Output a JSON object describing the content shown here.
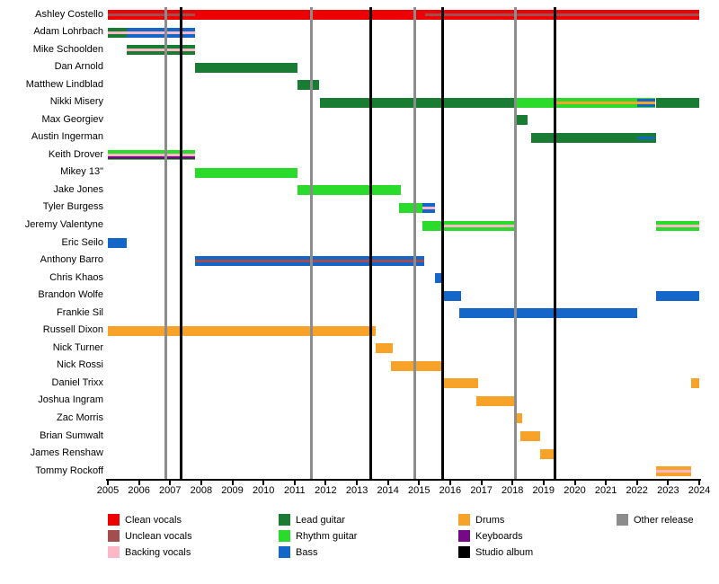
{
  "colors": {
    "clean_vocals": "#EF0000",
    "unclean_vocals": "#A34E4E",
    "backing_vocals": "#FCB8C6",
    "lead_guitar": "#187C33",
    "rhythm_guitar": "#2BDB2B",
    "bass": "#1467C8",
    "drums": "#F7A229",
    "keyboards": "#750A86",
    "studio_album": "#000000",
    "other_release": "#8C8C8C"
  },
  "chart_data": {
    "type": "timeline-gantt",
    "title": "",
    "x_axis": {
      "min": 2005,
      "max": 2024,
      "ticks": [
        2005,
        2006,
        2007,
        2008,
        2009,
        2010,
        2011,
        2012,
        2013,
        2014,
        2015,
        2016,
        2017,
        2018,
        2019,
        2020,
        2021,
        2022,
        2023,
        2024
      ]
    },
    "members": [
      {
        "name": "Ashley Costello",
        "bars": [
          {
            "from": 2005,
            "to": 2024,
            "role": "clean_vocals",
            "stripes": [
              {
                "from": 2005,
                "to": 2007.8,
                "role": "unclean_vocals",
                "pos": "center"
              },
              {
                "from": 2015.2,
                "to": 2024,
                "role": "unclean_vocals",
                "pos": "center"
              }
            ]
          }
        ]
      },
      {
        "name": "Adam Lohrbach",
        "bars": [
          {
            "from": 2005,
            "to": 2005.6,
            "role": "lead_guitar",
            "stripes": [
              {
                "from": 2005,
                "to": 2005.6,
                "role": "backing_vocals",
                "pos": "center"
              }
            ]
          },
          {
            "from": 2005.6,
            "to": 2007.8,
            "role": "bass",
            "stripes": [
              {
                "from": 2005.6,
                "to": 2007.8,
                "role": "backing_vocals",
                "pos": "center"
              }
            ]
          }
        ]
      },
      {
        "name": "Mike Schoolden",
        "bars": [
          {
            "from": 2005.6,
            "to": 2007.8,
            "role": "lead_guitar",
            "stripes": [
              {
                "from": 2005.6,
                "to": 2007.8,
                "role": "backing_vocals",
                "pos": "center"
              }
            ]
          }
        ]
      },
      {
        "name": "Dan Arnold",
        "bars": [
          {
            "from": 2007.8,
            "to": 2011.1,
            "role": "lead_guitar"
          }
        ]
      },
      {
        "name": "Matthew Lindblad",
        "bars": [
          {
            "from": 2011.1,
            "to": 2011.8,
            "role": "lead_guitar"
          }
        ]
      },
      {
        "name": "Nikki Misery",
        "bars": [
          {
            "from": 2011.8,
            "to": 2018.05,
            "role": "lead_guitar"
          },
          {
            "from": 2018.05,
            "to": 2022.6,
            "role": "rhythm_guitar",
            "stripes": [
              {
                "from": 2019.4,
                "to": 2022.6,
                "role": "drums",
                "pos": "center"
              },
              {
                "from": 2022.0,
                "to": 2022.6,
                "role": "bass",
                "pos": "upper"
              },
              {
                "from": 2022.0,
                "to": 2022.6,
                "role": "bass",
                "pos": "lower"
              }
            ]
          },
          {
            "from": 2022.6,
            "to": 2024,
            "role": "lead_guitar"
          }
        ]
      },
      {
        "name": "Max Georgiev",
        "bars": [
          {
            "from": 2018.05,
            "to": 2018.5,
            "role": "lead_guitar"
          }
        ]
      },
      {
        "name": "Austin Ingerman",
        "bars": [
          {
            "from": 2018.6,
            "to": 2022.6,
            "role": "lead_guitar",
            "stripes": [
              {
                "from": 2022.0,
                "to": 2022.6,
                "role": "bass",
                "pos": "center"
              }
            ]
          }
        ]
      },
      {
        "name": "Keith Drover",
        "bars": [
          {
            "from": 2005,
            "to": 2007.8,
            "role": "rhythm_guitar",
            "stripes": [
              {
                "from": 2005,
                "to": 2007.8,
                "role": "backing_vocals",
                "pos": "center"
              },
              {
                "from": 2005,
                "to": 2007.8,
                "role": "keyboards",
                "pos": "lower"
              }
            ]
          }
        ]
      },
      {
        "name": "Mikey 13\"",
        "bars": [
          {
            "from": 2007.8,
            "to": 2011.1,
            "role": "rhythm_guitar"
          }
        ]
      },
      {
        "name": "Jake Jones",
        "bars": [
          {
            "from": 2011.1,
            "to": 2014.4,
            "role": "rhythm_guitar"
          }
        ]
      },
      {
        "name": "Tyler Burgess",
        "bars": [
          {
            "from": 2014.35,
            "to": 2015.1,
            "role": "rhythm_guitar"
          },
          {
            "from": 2015.1,
            "to": 2015.5,
            "role": "bass",
            "stripes": [
              {
                "from": 2015.1,
                "to": 2015.5,
                "role": "backing_vocals",
                "pos": "center"
              }
            ]
          }
        ]
      },
      {
        "name": "Jeremy Valentyne",
        "bars": [
          {
            "from": 2015.1,
            "to": 2018.1,
            "role": "rhythm_guitar",
            "stripes": [
              {
                "from": 2015.75,
                "to": 2018.1,
                "role": "backing_vocals",
                "pos": "center"
              }
            ]
          },
          {
            "from": 2022.6,
            "to": 2024,
            "role": "rhythm_guitar",
            "stripes": [
              {
                "from": 2022.6,
                "to": 2024,
                "role": "backing_vocals",
                "pos": "center"
              }
            ]
          }
        ]
      },
      {
        "name": "Eric Seilo",
        "bars": [
          {
            "from": 2005,
            "to": 2005.6,
            "role": "bass"
          }
        ]
      },
      {
        "name": "Anthony Barro",
        "bars": [
          {
            "from": 2007.8,
            "to": 2015.15,
            "role": "bass",
            "stripes": [
              {
                "from": 2007.8,
                "to": 2015.15,
                "role": "unclean_vocals",
                "pos": "center"
              }
            ]
          }
        ]
      },
      {
        "name": "Chris Khaos",
        "bars": [
          {
            "from": 2015.5,
            "to": 2015.8,
            "role": "bass"
          }
        ]
      },
      {
        "name": "Brandon Wolfe",
        "bars": [
          {
            "from": 2015.75,
            "to": 2016.35,
            "role": "bass"
          },
          {
            "from": 2022.6,
            "to": 2024,
            "role": "bass"
          }
        ]
      },
      {
        "name": "Frankie Sil",
        "bars": [
          {
            "from": 2016.3,
            "to": 2022.0,
            "role": "bass"
          }
        ]
      },
      {
        "name": "Russell Dixon",
        "bars": [
          {
            "from": 2005,
            "to": 2013.6,
            "role": "drums"
          }
        ]
      },
      {
        "name": "Nick Turner",
        "bars": [
          {
            "from": 2013.6,
            "to": 2014.15,
            "role": "drums"
          }
        ]
      },
      {
        "name": "Nick Rossi",
        "bars": [
          {
            "from": 2014.1,
            "to": 2015.8,
            "role": "drums"
          }
        ]
      },
      {
        "name": "Daniel Trixx",
        "bars": [
          {
            "from": 2015.75,
            "to": 2016.9,
            "role": "drums"
          },
          {
            "from": 2023.75,
            "to": 2024,
            "role": "drums"
          }
        ]
      },
      {
        "name": "Joshua Ingram",
        "bars": [
          {
            "from": 2016.85,
            "to": 2018.1,
            "role": "drums"
          }
        ]
      },
      {
        "name": "Zac Morris",
        "bars": [
          {
            "from": 2018.05,
            "to": 2018.3,
            "role": "drums"
          }
        ]
      },
      {
        "name": "Brian Sumwalt",
        "bars": [
          {
            "from": 2018.25,
            "to": 2018.9,
            "role": "drums"
          }
        ]
      },
      {
        "name": "James Renshaw",
        "bars": [
          {
            "from": 2018.9,
            "to": 2019.4,
            "role": "drums"
          }
        ]
      },
      {
        "name": "Tommy Rockoff",
        "bars": [
          {
            "from": 2022.6,
            "to": 2023.75,
            "role": "drums",
            "stripes": [
              {
                "from": 2022.6,
                "to": 2023.75,
                "role": "backing_vocals",
                "pos": "center"
              }
            ]
          }
        ]
      }
    ],
    "lines": {
      "studio_album": [
        2007.35,
        2013.45,
        2015.75,
        2019.35
      ],
      "other_release": [
        2006.85,
        2011.55,
        2014.85,
        2018.1
      ]
    },
    "legend_position": "bottom",
    "grid": false
  },
  "legend": {
    "items": [
      {
        "label": "Clean vocals",
        "role": "clean_vocals",
        "col": 0
      },
      {
        "label": "Unclean vocals",
        "role": "unclean_vocals",
        "col": 0
      },
      {
        "label": "Backing vocals",
        "role": "backing_vocals",
        "col": 0
      },
      {
        "label": "Lead guitar",
        "role": "lead_guitar",
        "col": 1
      },
      {
        "label": "Rhythm guitar",
        "role": "rhythm_guitar",
        "col": 1
      },
      {
        "label": "Bass",
        "role": "bass",
        "col": 1
      },
      {
        "label": "Drums",
        "role": "drums",
        "col": 2
      },
      {
        "label": "Keyboards",
        "role": "keyboards",
        "col": 2
      },
      {
        "label": "Studio album",
        "role": "studio_album",
        "col": 2
      },
      {
        "label": "Other release",
        "role": "other_release",
        "col": 3
      }
    ]
  }
}
